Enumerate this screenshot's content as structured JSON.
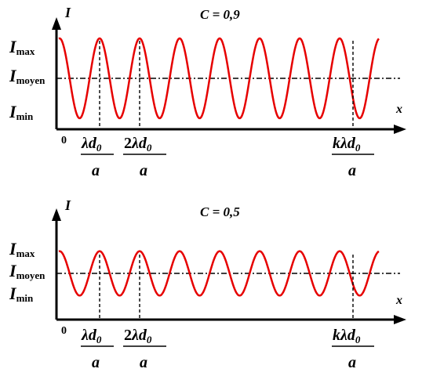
{
  "chart_data": [
    {
      "type": "line",
      "title": "C = 0,9",
      "xlabel": "x",
      "ylabel": "I",
      "y_levels": {
        "Imax": "I_max",
        "Imoyen": "I_moyen",
        "Imin": "I_min"
      },
      "contrast": 0.9,
      "periods": 8,
      "origin_label": "0",
      "x_ticks": [
        {
          "numerator": "λd₀",
          "denominator": "a",
          "period_index": 1
        },
        {
          "numerator": "2λd₀",
          "denominator": "a",
          "period_index": 2
        },
        {
          "numerator": "kλd₀",
          "denominator": "a",
          "period_index": 7
        }
      ],
      "series": [
        {
          "color": "#e60000"
        }
      ]
    },
    {
      "type": "line",
      "title": "C = 0,5",
      "xlabel": "x",
      "ylabel": "I",
      "y_levels": {
        "Imax": "I_max",
        "Imoyen": "I_moyen",
        "Imin": "I_min"
      },
      "contrast": 0.5,
      "periods": 8,
      "origin_label": "0",
      "x_ticks": [
        {
          "numerator": "λd₀",
          "denominator": "a",
          "period_index": 1
        },
        {
          "numerator": "2λd₀",
          "denominator": "a",
          "period_index": 2
        },
        {
          "numerator": "kλd₀",
          "denominator": "a",
          "period_index": 7
        }
      ],
      "series": [
        {
          "color": "#e60000"
        }
      ]
    }
  ]
}
